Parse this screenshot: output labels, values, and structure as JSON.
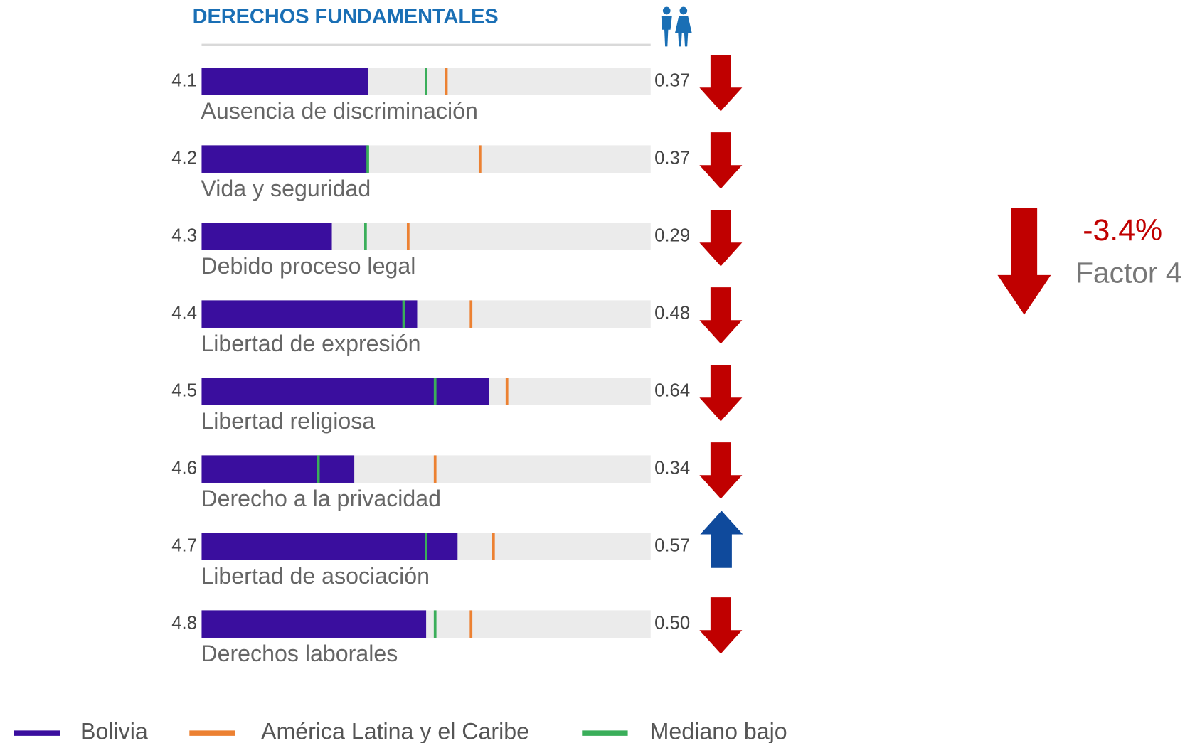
{
  "chart_data": {
    "type": "bar",
    "orientation": "horizontal",
    "title": "DERECHOS FUNDAMENTALES",
    "codes": [
      "4.1",
      "4.2",
      "4.3",
      "4.4",
      "4.5",
      "4.6",
      "4.7",
      "4.8"
    ],
    "categories": [
      "Ausencia de discriminación",
      "Vida y seguridad",
      "Debido proceso legal",
      "Libertad de expresión",
      "Libertad religiosa",
      "Derecho a la privacidad",
      "Libertad de asociación",
      "Derechos laborales"
    ],
    "xlim": [
      0,
      1
    ],
    "series": [
      {
        "name": "Bolivia",
        "color": "#3a0e9e",
        "values": [
          0.37,
          0.37,
          0.29,
          0.48,
          0.64,
          0.34,
          0.57,
          0.5
        ],
        "value_labels": [
          "0.37",
          "0.37",
          "0.29",
          "0.48",
          "0.64",
          "0.34",
          "0.57",
          "0.50"
        ]
      },
      {
        "name": "América Latina y el Caribe",
        "color": "#ec8132",
        "values": [
          0.545,
          0.62,
          0.46,
          0.6,
          0.68,
          0.52,
          0.65,
          0.6
        ]
      },
      {
        "name": "Mediano bajo",
        "color": "#3aae5a",
        "values": [
          0.5,
          0.37,
          0.365,
          0.45,
          0.52,
          0.26,
          0.5,
          0.52
        ]
      }
    ],
    "trend": [
      "down",
      "down",
      "down",
      "down",
      "down",
      "down",
      "up",
      "down"
    ],
    "trend_colors": {
      "down": "#c00000",
      "up": "#0f4a9c"
    },
    "track_color": "#ebebeb",
    "summary": {
      "change": "-3.4%",
      "label": "Factor 4",
      "trend": "down"
    }
  }
}
